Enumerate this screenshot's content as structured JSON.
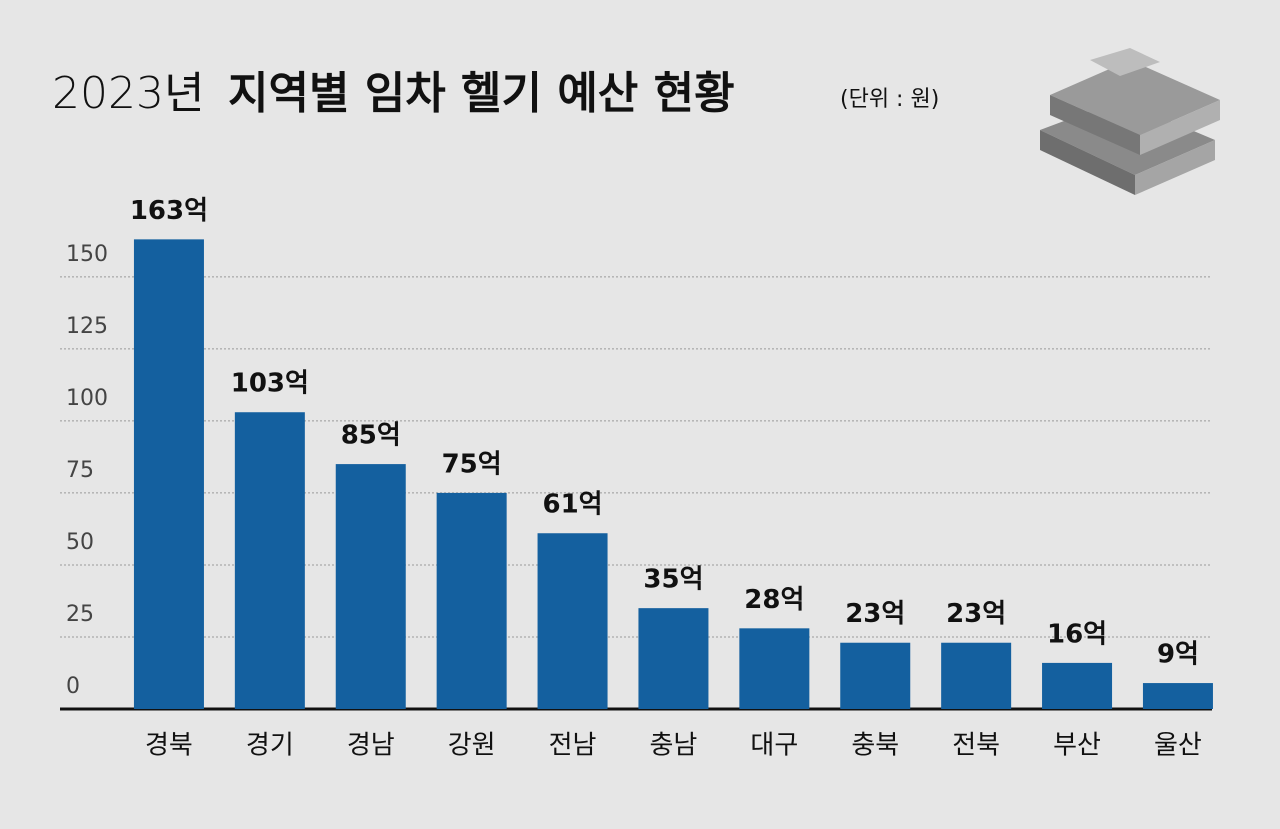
{
  "chart_data": {
    "type": "bar",
    "title_year": "2023년",
    "title": "지역별 임차 헬기 예산 현황",
    "unit": "(단위 : 원)",
    "categories": [
      "경북",
      "경기",
      "경남",
      "강원",
      "전남",
      "충남",
      "대구",
      "충북",
      "전북",
      "부산",
      "울산"
    ],
    "values": [
      163,
      103,
      85,
      75,
      61,
      35,
      28,
      23,
      23,
      16,
      9
    ],
    "value_labels": [
      "163억",
      "103억",
      "85억",
      "75억",
      "61억",
      "35억",
      "28억",
      "23억",
      "23억",
      "16억",
      "9억"
    ],
    "color": "#14609f",
    "ylim": [
      0,
      160
    ],
    "yticks": [
      0,
      25,
      50,
      75,
      100,
      125,
      150
    ],
    "grid": true
  }
}
